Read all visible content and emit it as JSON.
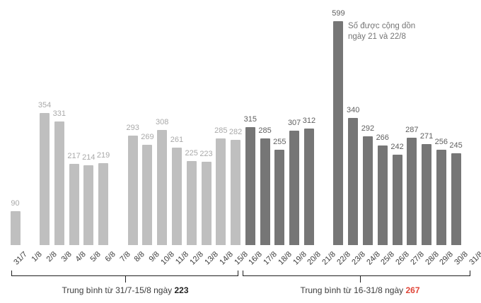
{
  "chart_data": {
    "type": "bar",
    "title": "",
    "xlabel": "",
    "ylabel": "",
    "ylim": [
      0,
      599
    ],
    "grid": false,
    "legend": "none",
    "categories": [
      "31/7",
      "1/8",
      "2/8",
      "3/8",
      "4/8",
      "5/8",
      "6/8",
      "7/8",
      "8/8",
      "9/8",
      "10/8",
      "11/8",
      "12/8",
      "13/8",
      "14/8",
      "15/8",
      "16/8",
      "17/8",
      "18/8",
      "19/8",
      "20/8",
      "21/8",
      "22/8",
      "23/8",
      "24/8",
      "25/8",
      "26/8",
      "27/8",
      "28/8",
      "29/8",
      "30/8",
      "31/8"
    ],
    "values": [
      90,
      null,
      354,
      331,
      217,
      214,
      219,
      null,
      293,
      269,
      308,
      261,
      225,
      223,
      285,
      282,
      315,
      285,
      255,
      307,
      312,
      null,
      599,
      340,
      292,
      266,
      242,
      287,
      271,
      256,
      245,
      null
    ],
    "group_split_index": 16,
    "groups": [
      {
        "name": "light",
        "range": "31/7-15/8"
      },
      {
        "name": "dark",
        "range": "16/8-31/8"
      }
    ],
    "annotation": {
      "line1": "Số được cộng dồn",
      "line2": "ngày 21 và 22/8",
      "attached_to": "22/8"
    },
    "brackets": [
      {
        "text": "Trung bình từ 31/7-15/8 ngày ",
        "value": "223",
        "from": "31/7",
        "to": "15/8",
        "value_color": "#222222"
      },
      {
        "text": "Trung bình từ 16-31/8 ngày ",
        "value": "267",
        "from": "16/8",
        "to": "31/8",
        "value_color": "#e04538"
      }
    ],
    "colors": {
      "bar_light": "#bfbfbf",
      "bar_dark": "#767676",
      "value_label_light": "#a9a9a9",
      "value_label_dark": "#5f5f5f",
      "axis_text": "#3c3c3c",
      "annotation_text": "#757575",
      "bracket_line": "#1f1f1f",
      "highlight_red": "#e04538",
      "background": "#ffffff"
    }
  }
}
